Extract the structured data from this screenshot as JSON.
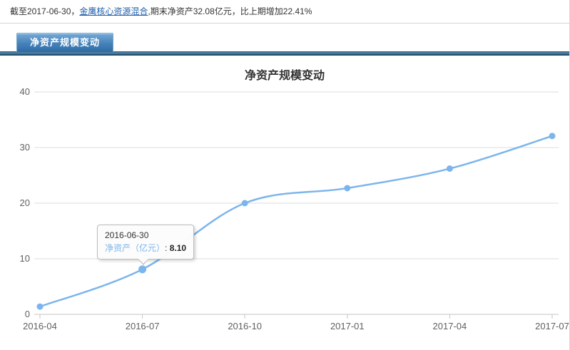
{
  "header": {
    "prefix": "截至2017-06-30，",
    "fund_link": "金鹰核心资源混合",
    "suffix": ",期末净资产32.08亿元，比上期增加22.41%"
  },
  "tab": {
    "label": "净资产规模变动"
  },
  "chart_data": {
    "type": "line",
    "title": "净资产规模变动",
    "x": [
      "2016-03-31",
      "2016-06-30",
      "2016-09-30",
      "2016-12-31",
      "2017-03-31",
      "2017-06-30"
    ],
    "values": [
      1.4,
      8.1,
      20.0,
      22.7,
      26.21,
      32.08
    ],
    "x_tick_labels": [
      "2016-04",
      "2016-07",
      "2016-10",
      "2017-01",
      "2017-04",
      "2017-07"
    ],
    "y_ticks": [
      0,
      10,
      20,
      30,
      40
    ],
    "ylim": [
      0,
      40
    ],
    "xlabel": "",
    "ylabel": "",
    "grid": "horizontal-only",
    "legend": "none",
    "line_color": "#7cb5ec",
    "tooltip": {
      "date": "2016-06-30",
      "series_label": "净资产（亿元）",
      "separator": ": ",
      "value": "8.10",
      "point_index": 1
    }
  },
  "colors": {
    "accent_blue": "#7cb5ec",
    "link_blue": "#2160ac",
    "tab_bar_blue": "#3c6e96",
    "axis_text": "#606060",
    "title_text": "#333333"
  }
}
